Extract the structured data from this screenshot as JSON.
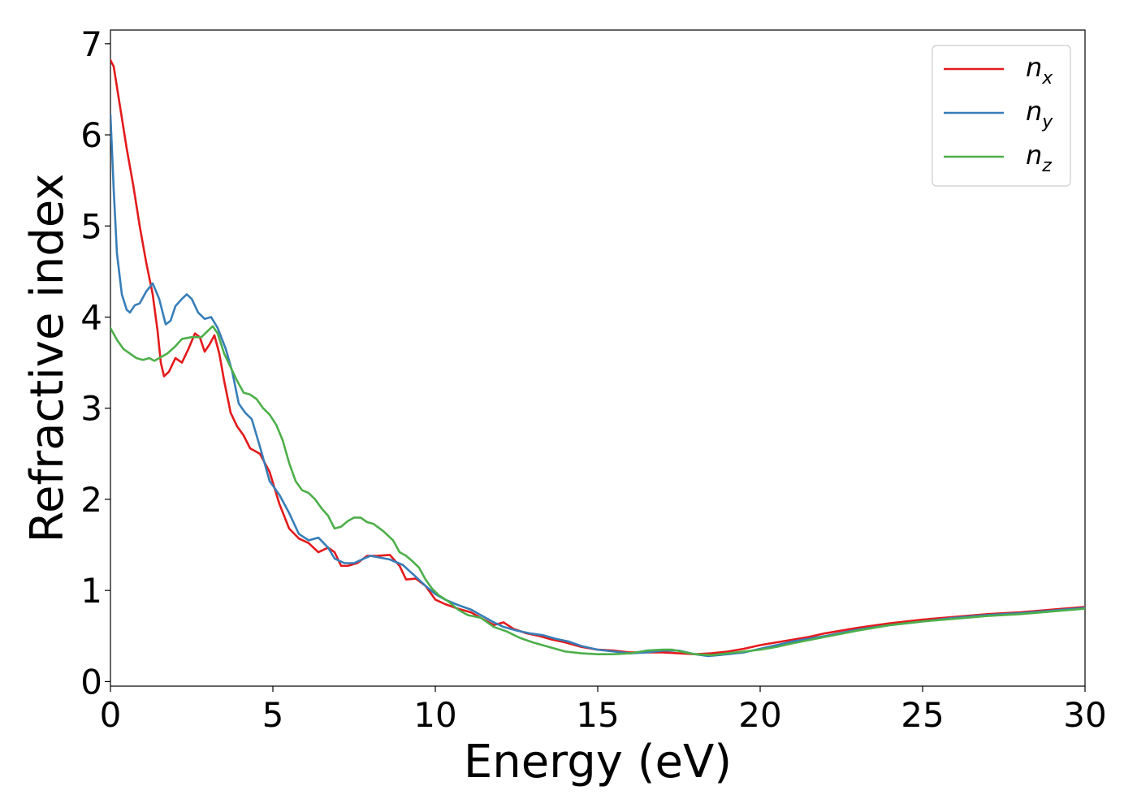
{
  "chart_data": {
    "type": "line",
    "title": "",
    "xlabel": "Energy (eV)",
    "ylabel": "Refractive index",
    "xlim": [
      0,
      30
    ],
    "ylim": [
      -0.05,
      7.15
    ],
    "xticks": [
      0,
      5,
      10,
      15,
      20,
      25,
      30
    ],
    "yticks": [
      0,
      1,
      2,
      3,
      4,
      5,
      6,
      7
    ],
    "grid": false,
    "legend_position": "top-right",
    "series": [
      {
        "name": "n",
        "subscript": "x",
        "color": "#e41a1c",
        "points": [
          [
            0,
            6.82
          ],
          [
            0.1,
            6.75
          ],
          [
            0.3,
            6.3
          ],
          [
            0.5,
            5.85
          ],
          [
            0.7,
            5.45
          ],
          [
            0.9,
            5.0
          ],
          [
            1.1,
            4.6
          ],
          [
            1.3,
            4.25
          ],
          [
            1.45,
            3.85
          ],
          [
            1.55,
            3.5
          ],
          [
            1.65,
            3.35
          ],
          [
            1.8,
            3.4
          ],
          [
            2.0,
            3.55
          ],
          [
            2.2,
            3.5
          ],
          [
            2.4,
            3.65
          ],
          [
            2.6,
            3.82
          ],
          [
            2.75,
            3.78
          ],
          [
            2.9,
            3.62
          ],
          [
            3.05,
            3.7
          ],
          [
            3.2,
            3.8
          ],
          [
            3.35,
            3.6
          ],
          [
            3.5,
            3.3
          ],
          [
            3.7,
            2.95
          ],
          [
            3.9,
            2.8
          ],
          [
            4.1,
            2.7
          ],
          [
            4.3,
            2.56
          ],
          [
            4.6,
            2.5
          ],
          [
            4.9,
            2.3
          ],
          [
            5.2,
            1.95
          ],
          [
            5.5,
            1.68
          ],
          [
            5.8,
            1.57
          ],
          [
            6.1,
            1.52
          ],
          [
            6.4,
            1.42
          ],
          [
            6.7,
            1.47
          ],
          [
            6.9,
            1.42
          ],
          [
            7.1,
            1.27
          ],
          [
            7.3,
            1.27
          ],
          [
            7.6,
            1.3
          ],
          [
            7.9,
            1.38
          ],
          [
            8.2,
            1.38
          ],
          [
            8.6,
            1.39
          ],
          [
            8.9,
            1.27
          ],
          [
            9.1,
            1.12
          ],
          [
            9.4,
            1.13
          ],
          [
            9.7,
            1.05
          ],
          [
            10.0,
            0.9
          ],
          [
            10.3,
            0.85
          ],
          [
            10.7,
            0.8
          ],
          [
            11.1,
            0.76
          ],
          [
            11.5,
            0.68
          ],
          [
            11.8,
            0.62
          ],
          [
            12.1,
            0.65
          ],
          [
            12.4,
            0.58
          ],
          [
            12.8,
            0.53
          ],
          [
            13.2,
            0.5
          ],
          [
            13.6,
            0.46
          ],
          [
            14.0,
            0.43
          ],
          [
            14.5,
            0.38
          ],
          [
            15.0,
            0.35
          ],
          [
            15.5,
            0.34
          ],
          [
            16.0,
            0.32
          ],
          [
            16.5,
            0.32
          ],
          [
            17.0,
            0.32
          ],
          [
            17.5,
            0.31
          ],
          [
            18.0,
            0.3
          ],
          [
            18.5,
            0.31
          ],
          [
            19.0,
            0.33
          ],
          [
            19.5,
            0.36
          ],
          [
            20.0,
            0.4
          ],
          [
            20.5,
            0.43
          ],
          [
            21.0,
            0.46
          ],
          [
            21.5,
            0.49
          ],
          [
            22.0,
            0.53
          ],
          [
            23.0,
            0.59
          ],
          [
            24.0,
            0.64
          ],
          [
            25.0,
            0.68
          ],
          [
            26.0,
            0.71
          ],
          [
            27.0,
            0.74
          ],
          [
            28.0,
            0.76
          ],
          [
            29.0,
            0.79
          ],
          [
            30.0,
            0.82
          ]
        ]
      },
      {
        "name": "n",
        "subscript": "y",
        "color": "#377eb8",
        "points": [
          [
            0,
            6.22
          ],
          [
            0.1,
            5.4
          ],
          [
            0.2,
            4.7
          ],
          [
            0.35,
            4.25
          ],
          [
            0.5,
            4.08
          ],
          [
            0.6,
            4.05
          ],
          [
            0.75,
            4.13
          ],
          [
            0.9,
            4.15
          ],
          [
            1.1,
            4.28
          ],
          [
            1.3,
            4.37
          ],
          [
            1.5,
            4.2
          ],
          [
            1.7,
            3.92
          ],
          [
            1.85,
            3.96
          ],
          [
            2.0,
            4.12
          ],
          [
            2.2,
            4.2
          ],
          [
            2.35,
            4.25
          ],
          [
            2.5,
            4.2
          ],
          [
            2.7,
            4.05
          ],
          [
            2.9,
            3.98
          ],
          [
            3.1,
            4.0
          ],
          [
            3.3,
            3.88
          ],
          [
            3.55,
            3.65
          ],
          [
            3.75,
            3.4
          ],
          [
            3.95,
            3.05
          ],
          [
            4.15,
            2.95
          ],
          [
            4.35,
            2.88
          ],
          [
            4.6,
            2.58
          ],
          [
            4.9,
            2.2
          ],
          [
            5.2,
            2.05
          ],
          [
            5.5,
            1.85
          ],
          [
            5.8,
            1.62
          ],
          [
            6.1,
            1.55
          ],
          [
            6.4,
            1.58
          ],
          [
            6.7,
            1.47
          ],
          [
            6.9,
            1.35
          ],
          [
            7.2,
            1.3
          ],
          [
            7.5,
            1.3
          ],
          [
            7.8,
            1.35
          ],
          [
            8.0,
            1.38
          ],
          [
            8.3,
            1.36
          ],
          [
            8.6,
            1.34
          ],
          [
            9.0,
            1.28
          ],
          [
            9.4,
            1.15
          ],
          [
            9.7,
            1.05
          ],
          [
            10.0,
            0.96
          ],
          [
            10.3,
            0.9
          ],
          [
            10.7,
            0.84
          ],
          [
            11.1,
            0.79
          ],
          [
            11.5,
            0.71
          ],
          [
            11.8,
            0.65
          ],
          [
            12.1,
            0.6
          ],
          [
            12.5,
            0.56
          ],
          [
            12.9,
            0.53
          ],
          [
            13.3,
            0.51
          ],
          [
            13.7,
            0.47
          ],
          [
            14.1,
            0.44
          ],
          [
            14.5,
            0.39
          ],
          [
            15.0,
            0.35
          ],
          [
            15.5,
            0.33
          ],
          [
            16.0,
            0.31
          ],
          [
            16.5,
            0.32
          ],
          [
            17.0,
            0.34
          ],
          [
            17.5,
            0.34
          ],
          [
            18.0,
            0.3
          ],
          [
            18.4,
            0.28
          ],
          [
            19.0,
            0.3
          ],
          [
            19.5,
            0.32
          ],
          [
            20.0,
            0.36
          ],
          [
            20.5,
            0.4
          ],
          [
            21.0,
            0.44
          ],
          [
            22.0,
            0.5
          ],
          [
            23.0,
            0.57
          ],
          [
            24.0,
            0.62
          ],
          [
            25.0,
            0.66
          ],
          [
            26.0,
            0.7
          ],
          [
            27.0,
            0.73
          ],
          [
            28.0,
            0.75
          ],
          [
            29.0,
            0.78
          ],
          [
            30.0,
            0.81
          ]
        ]
      },
      {
        "name": "n",
        "subscript": "z",
        "color": "#4daf4a",
        "points": [
          [
            0,
            3.88
          ],
          [
            0.2,
            3.75
          ],
          [
            0.4,
            3.65
          ],
          [
            0.6,
            3.6
          ],
          [
            0.8,
            3.55
          ],
          [
            1.0,
            3.53
          ],
          [
            1.2,
            3.55
          ],
          [
            1.35,
            3.52
          ],
          [
            1.55,
            3.56
          ],
          [
            1.75,
            3.6
          ],
          [
            2.0,
            3.68
          ],
          [
            2.2,
            3.76
          ],
          [
            2.5,
            3.78
          ],
          [
            2.8,
            3.78
          ],
          [
            3.0,
            3.85
          ],
          [
            3.15,
            3.9
          ],
          [
            3.3,
            3.82
          ],
          [
            3.5,
            3.6
          ],
          [
            3.7,
            3.45
          ],
          [
            3.9,
            3.3
          ],
          [
            4.1,
            3.17
          ],
          [
            4.3,
            3.15
          ],
          [
            4.5,
            3.1
          ],
          [
            4.7,
            3.0
          ],
          [
            4.9,
            2.93
          ],
          [
            5.1,
            2.82
          ],
          [
            5.3,
            2.65
          ],
          [
            5.5,
            2.4
          ],
          [
            5.7,
            2.2
          ],
          [
            5.9,
            2.1
          ],
          [
            6.1,
            2.07
          ],
          [
            6.3,
            2.0
          ],
          [
            6.5,
            1.9
          ],
          [
            6.7,
            1.82
          ],
          [
            6.9,
            1.68
          ],
          [
            7.1,
            1.7
          ],
          [
            7.3,
            1.76
          ],
          [
            7.5,
            1.8
          ],
          [
            7.7,
            1.8
          ],
          [
            7.9,
            1.75
          ],
          [
            8.1,
            1.73
          ],
          [
            8.4,
            1.65
          ],
          [
            8.7,
            1.55
          ],
          [
            8.9,
            1.42
          ],
          [
            9.1,
            1.38
          ],
          [
            9.3,
            1.32
          ],
          [
            9.5,
            1.25
          ],
          [
            9.7,
            1.12
          ],
          [
            9.9,
            1.02
          ],
          [
            10.1,
            0.95
          ],
          [
            10.4,
            0.88
          ],
          [
            10.7,
            0.79
          ],
          [
            11.0,
            0.73
          ],
          [
            11.4,
            0.7
          ],
          [
            11.8,
            0.6
          ],
          [
            12.2,
            0.55
          ],
          [
            12.6,
            0.48
          ],
          [
            13.0,
            0.43
          ],
          [
            13.5,
            0.38
          ],
          [
            14.0,
            0.33
          ],
          [
            14.5,
            0.31
          ],
          [
            15.0,
            0.3
          ],
          [
            15.5,
            0.3
          ],
          [
            16.0,
            0.31
          ],
          [
            16.5,
            0.34
          ],
          [
            17.0,
            0.35
          ],
          [
            17.3,
            0.35
          ],
          [
            17.7,
            0.32
          ],
          [
            18.0,
            0.3
          ],
          [
            18.5,
            0.29
          ],
          [
            19.0,
            0.31
          ],
          [
            19.5,
            0.33
          ],
          [
            20.0,
            0.35
          ],
          [
            20.5,
            0.38
          ],
          [
            21.0,
            0.42
          ],
          [
            22.0,
            0.49
          ],
          [
            23.0,
            0.56
          ],
          [
            24.0,
            0.62
          ],
          [
            25.0,
            0.66
          ],
          [
            26.0,
            0.69
          ],
          [
            27.0,
            0.72
          ],
          [
            28.0,
            0.74
          ],
          [
            29.0,
            0.77
          ],
          [
            30.0,
            0.8
          ]
        ]
      }
    ]
  }
}
